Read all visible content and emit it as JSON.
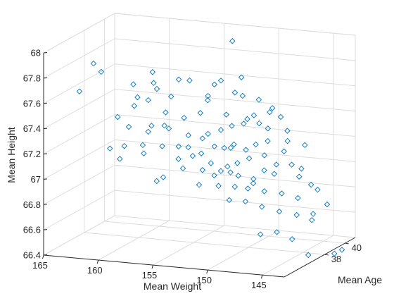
{
  "chart_data": {
    "type": "scatter3",
    "title": "",
    "xlabel": "Mean Weight",
    "ylabel": "Mean Age",
    "zlabel": "Mean Height",
    "xlim": [
      143,
      165
    ],
    "ylim": [
      34,
      41
    ],
    "zlim": [
      66.4,
      68
    ],
    "x_ticks": [
      145,
      150,
      155,
      160,
      165
    ],
    "x_tick_labels": [
      "145",
      "150",
      "155",
      "160",
      "165"
    ],
    "y_ticks": [
      38,
      40
    ],
    "y_tick_labels": [
      "38",
      "40"
    ],
    "z_ticks": [
      66.4,
      66.6,
      66.8,
      67,
      67.2,
      67.4,
      67.6,
      67.8,
      68
    ],
    "z_tick_labels": [
      "66.4",
      "66.6",
      "66.8",
      "67",
      "67.2",
      "67.4",
      "67.6",
      "67.8",
      "68"
    ],
    "grid": true,
    "marker": "diamond",
    "marker_color": "#0072bd",
    "points": [
      {
        "x": 152.2,
        "y": 38.8,
        "z": 67.98
      },
      {
        "x": 163.5,
        "y": 37.3,
        "z": 67.78
      },
      {
        "x": 162.8,
        "y": 37.3,
        "z": 67.72
      },
      {
        "x": 164.6,
        "y": 37.1,
        "z": 67.56
      },
      {
        "x": 161.2,
        "y": 37.2,
        "z": 67.38
      },
      {
        "x": 158.2,
        "y": 37.4,
        "z": 67.75
      },
      {
        "x": 158.0,
        "y": 37.3,
        "z": 67.67
      },
      {
        "x": 157.8,
        "y": 37.4,
        "z": 67.62
      },
      {
        "x": 159.4,
        "y": 36.8,
        "z": 67.67
      },
      {
        "x": 159.2,
        "y": 37.0,
        "z": 67.56
      },
      {
        "x": 158.5,
        "y": 37.3,
        "z": 67.53
      },
      {
        "x": 155.8,
        "y": 37.4,
        "z": 67.71
      },
      {
        "x": 155.0,
        "y": 37.6,
        "z": 67.7
      },
      {
        "x": 152.5,
        "y": 38.0,
        "z": 67.7
      },
      {
        "x": 153.0,
        "y": 37.9,
        "z": 67.67
      },
      {
        "x": 151.0,
        "y": 38.4,
        "z": 67.72
      },
      {
        "x": 151.5,
        "y": 38.3,
        "z": 67.6
      },
      {
        "x": 153.5,
        "y": 37.8,
        "z": 67.58
      },
      {
        "x": 150.8,
        "y": 38.3,
        "z": 67.58
      },
      {
        "x": 149.5,
        "y": 38.5,
        "z": 67.55
      },
      {
        "x": 156.5,
        "y": 37.4,
        "z": 67.57
      },
      {
        "x": 153.8,
        "y": 38.1,
        "z": 67.53
      },
      {
        "x": 159.5,
        "y": 37.0,
        "z": 67.49
      },
      {
        "x": 157.0,
        "y": 37.4,
        "z": 67.44
      },
      {
        "x": 154.2,
        "y": 37.8,
        "z": 67.44
      },
      {
        "x": 152.1,
        "y": 38.1,
        "z": 67.43
      },
      {
        "x": 148.5,
        "y": 38.5,
        "z": 67.46
      },
      {
        "x": 147.5,
        "y": 38.5,
        "z": 67.43
      },
      {
        "x": 146.8,
        "y": 38.4,
        "z": 67.33
      },
      {
        "x": 149.0,
        "y": 38.0,
        "z": 67.39
      },
      {
        "x": 151.5,
        "y": 38.0,
        "z": 67.35
      },
      {
        "x": 150.7,
        "y": 38.3,
        "z": 67.36
      },
      {
        "x": 155.5,
        "y": 37.6,
        "z": 67.4
      },
      {
        "x": 157.2,
        "y": 37.5,
        "z": 67.33
      },
      {
        "x": 158.2,
        "y": 37.3,
        "z": 67.33
      },
      {
        "x": 158.5,
        "y": 37.3,
        "z": 67.28
      },
      {
        "x": 156.8,
        "y": 37.5,
        "z": 67.31
      },
      {
        "x": 153.5,
        "y": 37.8,
        "z": 67.28
      },
      {
        "x": 152.5,
        "y": 38.0,
        "z": 67.31
      },
      {
        "x": 154.0,
        "y": 37.8,
        "z": 67.24
      },
      {
        "x": 155.2,
        "y": 37.7,
        "z": 67.26
      },
      {
        "x": 159.0,
        "y": 37.3,
        "z": 67.17
      },
      {
        "x": 160.5,
        "y": 37.1,
        "z": 67.16
      },
      {
        "x": 157.5,
        "y": 37.6,
        "z": 67.16
      },
      {
        "x": 156.0,
        "y": 37.6,
        "z": 67.17
      },
      {
        "x": 155.3,
        "y": 37.8,
        "z": 67.16
      },
      {
        "x": 154.8,
        "y": 37.7,
        "z": 67.1
      },
      {
        "x": 153.0,
        "y": 37.9,
        "z": 67.18
      },
      {
        "x": 152.2,
        "y": 38.0,
        "z": 67.17
      },
      {
        "x": 151.7,
        "y": 38.1,
        "z": 67.17
      },
      {
        "x": 151.4,
        "y": 38.1,
        "z": 67.2
      },
      {
        "x": 149.5,
        "y": 38.2,
        "z": 67.21
      },
      {
        "x": 148.5,
        "y": 38.3,
        "z": 67.24
      },
      {
        "x": 147.2,
        "y": 38.5,
        "z": 67.16
      },
      {
        "x": 146.5,
        "y": 38.5,
        "z": 67.06
      },
      {
        "x": 150.2,
        "y": 38.3,
        "z": 67.09
      },
      {
        "x": 151.0,
        "y": 38.0,
        "z": 67.06
      },
      {
        "x": 152.0,
        "y": 38.1,
        "z": 67.02
      },
      {
        "x": 152.6,
        "y": 38.1,
        "z": 66.98
      },
      {
        "x": 154.0,
        "y": 37.8,
        "z": 66.99
      },
      {
        "x": 155.6,
        "y": 37.6,
        "z": 67.0
      },
      {
        "x": 157.5,
        "y": 37.7,
        "z": 66.91
      },
      {
        "x": 158.0,
        "y": 37.6,
        "z": 66.88
      },
      {
        "x": 161.0,
        "y": 37.2,
        "z": 67.05
      },
      {
        "x": 162.0,
        "y": 37.3,
        "z": 67.12
      },
      {
        "x": 159.0,
        "y": 37.4,
        "z": 67.1
      },
      {
        "x": 153.2,
        "y": 38.1,
        "z": 66.94
      },
      {
        "x": 151.1,
        "y": 38.2,
        "z": 66.95
      },
      {
        "x": 149.8,
        "y": 38.3,
        "z": 66.93
      },
      {
        "x": 148.0,
        "y": 38.4,
        "z": 66.98
      },
      {
        "x": 146.0,
        "y": 38.7,
        "z": 66.96
      },
      {
        "x": 145.0,
        "y": 38.8,
        "z": 66.9
      },
      {
        "x": 147.5,
        "y": 38.6,
        "z": 66.82
      },
      {
        "x": 149.0,
        "y": 38.5,
        "z": 66.83
      },
      {
        "x": 150.5,
        "y": 38.5,
        "z": 66.84
      },
      {
        "x": 151.6,
        "y": 38.4,
        "z": 66.85
      },
      {
        "x": 153.0,
        "y": 38.3,
        "z": 66.85
      },
      {
        "x": 154.5,
        "y": 38.0,
        "z": 66.86
      },
      {
        "x": 152.3,
        "y": 38.6,
        "z": 66.73
      },
      {
        "x": 151.0,
        "y": 38.8,
        "z": 66.72
      },
      {
        "x": 149.5,
        "y": 38.8,
        "z": 66.69
      },
      {
        "x": 148.0,
        "y": 38.9,
        "z": 66.66
      },
      {
        "x": 146.5,
        "y": 39.0,
        "z": 66.64
      },
      {
        "x": 145.3,
        "y": 39.2,
        "z": 66.6
      },
      {
        "x": 147.2,
        "y": 39.3,
        "z": 66.43
      },
      {
        "x": 148.5,
        "y": 39.2,
        "z": 66.48
      },
      {
        "x": 150.0,
        "y": 39.2,
        "z": 66.45
      },
      {
        "x": 146.0,
        "y": 39.6,
        "z": 66.3
      },
      {
        "x": 143.8,
        "y": 39.8,
        "z": 66.32
      },
      {
        "x": 143.2,
        "y": 39.9,
        "z": 66.35
      },
      {
        "x": 145.0,
        "y": 39.0,
        "z": 66.66
      },
      {
        "x": 144.0,
        "y": 39.3,
        "z": 66.73
      },
      {
        "x": 144.5,
        "y": 38.9,
        "z": 66.86
      },
      {
        "x": 146.3,
        "y": 38.9,
        "z": 66.78
      },
      {
        "x": 145.7,
        "y": 38.6,
        "z": 67.03
      },
      {
        "x": 145.2,
        "y": 38.4,
        "z": 67.23
      },
      {
        "x": 146.6,
        "y": 38.2,
        "z": 67.26
      },
      {
        "x": 148.3,
        "y": 38.1,
        "z": 67.35
      },
      {
        "x": 150.0,
        "y": 37.9,
        "z": 67.42
      },
      {
        "x": 147.8,
        "y": 38.0,
        "z": 67.52
      },
      {
        "x": 149.3,
        "y": 37.8,
        "z": 67.46
      },
      {
        "x": 150.4,
        "y": 38.2,
        "z": 67.16
      },
      {
        "x": 148.9,
        "y": 38.4,
        "z": 67.12
      },
      {
        "x": 147.9,
        "y": 38.5,
        "z": 67.05
      },
      {
        "x": 149.1,
        "y": 38.6,
        "z": 66.99
      },
      {
        "x": 150.1,
        "y": 38.6,
        "z": 66.88
      },
      {
        "x": 152.0,
        "y": 38.4,
        "z": 66.96
      },
      {
        "x": 153.6,
        "y": 38.2,
        "z": 67.03
      },
      {
        "x": 154.3,
        "y": 38.0,
        "z": 67.11
      },
      {
        "x": 156.2,
        "y": 37.8,
        "z": 67.06
      },
      {
        "x": 160.0,
        "y": 37.0,
        "z": 67.32
      }
    ]
  }
}
